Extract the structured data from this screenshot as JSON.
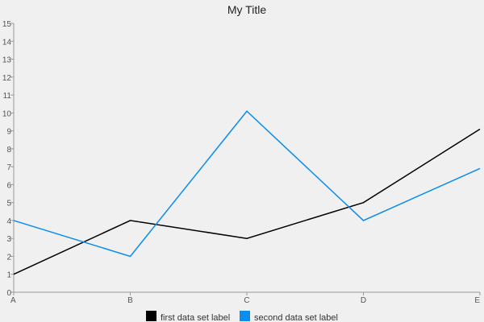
{
  "chart_data": {
    "type": "line",
    "title": "My Title",
    "categories": [
      "A",
      "B",
      "C",
      "D",
      "E"
    ],
    "ylim": [
      0,
      15
    ],
    "yticks": [
      0,
      1,
      2,
      3,
      4,
      5,
      6,
      7,
      8,
      9,
      10,
      11,
      12,
      13,
      14,
      15
    ],
    "grid": false,
    "legend_position": "bottom",
    "series": [
      {
        "name": "first data set label",
        "values": [
          1,
          4,
          3,
          5,
          9.1
        ],
        "color": "#000000"
      },
      {
        "name": "second data set label",
        "values": [
          4,
          2,
          10.1,
          4,
          6.9
        ],
        "color": "#0a8cf0"
      }
    ]
  }
}
